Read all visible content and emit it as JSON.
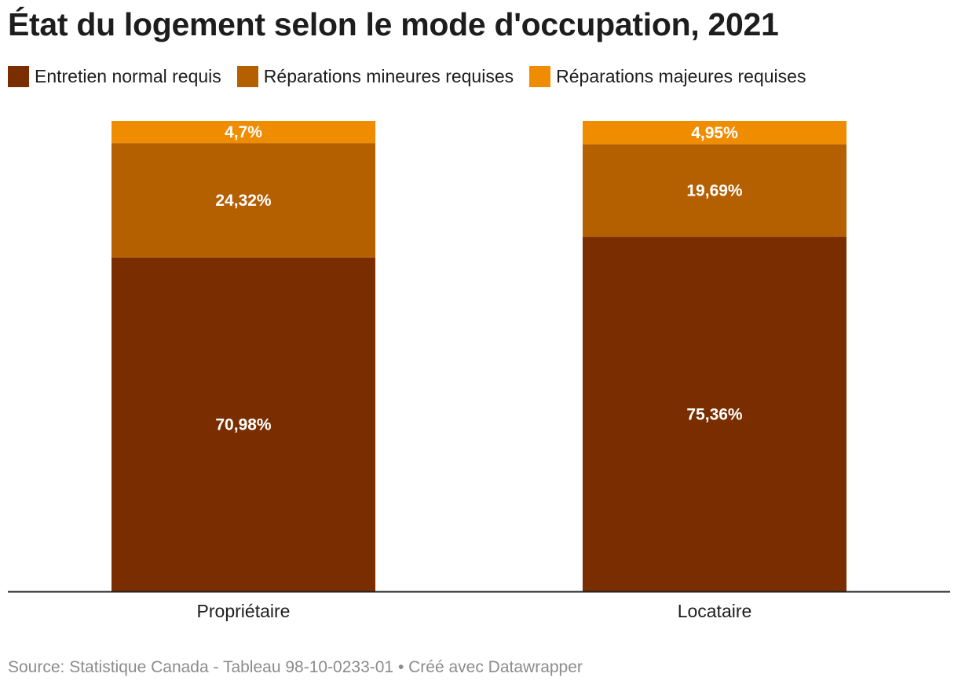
{
  "title": "État du logement selon le mode d'occupation, 2021",
  "legend": [
    {
      "label": "Entretien normal requis",
      "color": "#7a2e00"
    },
    {
      "label": "Réparations mineures requises",
      "color": "#b45f00"
    },
    {
      "label": "Réparations majeures requises",
      "color": "#f08c00"
    }
  ],
  "chart_data": {
    "type": "bar",
    "stacked": true,
    "title": "État du logement selon le mode d'occupation, 2021",
    "xlabel": "",
    "ylabel": "",
    "ylim": [
      0,
      100
    ],
    "grid": false,
    "legend_position": "top-left",
    "categories": [
      "Propriétaire",
      "Locataire"
    ],
    "series": [
      {
        "name": "Entretien normal requis",
        "values": [
          70.98,
          75.36
        ],
        "labels": [
          "70,98%",
          "75,36%"
        ],
        "color": "#7a2e00"
      },
      {
        "name": "Réparations mineures requises",
        "values": [
          24.32,
          19.69
        ],
        "labels": [
          "24,32%",
          "19,69%"
        ],
        "color": "#b45f00"
      },
      {
        "name": "Réparations majeures requises",
        "values": [
          4.7,
          4.95
        ],
        "labels": [
          "4,7%",
          "4,95%"
        ],
        "color": "#f08c00"
      }
    ]
  },
  "footer": {
    "source": "Source: Statistique Canada - Tableau 98-10-0233-01 • Créé avec Datawrapper"
  }
}
